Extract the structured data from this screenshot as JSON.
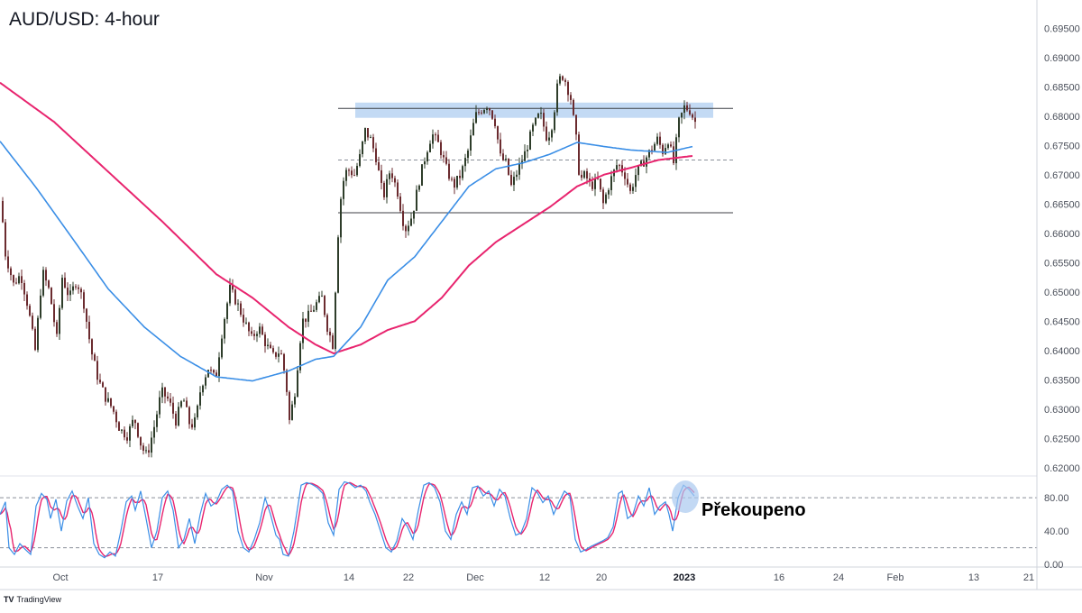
{
  "title": "AUD/USD: 4-hour",
  "callout": "Překoupeno",
  "watermark": "TradingView",
  "colors": {
    "up_candle": "#2e3d2a",
    "down_candle": "#6b2b2f",
    "ma_fast": "#3a8ee6",
    "ma_slow": "#e8246e",
    "stoch_k": "#3a8ee6",
    "stoch_d": "#e8246e",
    "zone_fill": "#b9d3f2",
    "axis_text": "#4a4f5a"
  },
  "chart_data": {
    "type": "candlestick",
    "price_axis": {
      "ylim": [
        0.6175,
        0.6975
      ],
      "ticks": [
        "0.62000",
        "0.62500",
        "0.63000",
        "0.63500",
        "0.64000",
        "0.64500",
        "0.65000",
        "0.65500",
        "0.66000",
        "0.66500",
        "0.67000",
        "0.67500",
        "0.68000",
        "0.68500",
        "0.69000",
        "0.69500"
      ]
    },
    "x_axis": {
      "ticks": [
        "Oct",
        "17",
        "Nov",
        "14",
        "22",
        "Dec",
        "12",
        "20",
        "2023",
        "16",
        "24",
        "Feb",
        "13",
        "21"
      ],
      "bold_ticks": [
        "2023"
      ]
    },
    "levels": [
      {
        "name": "resistance",
        "value": 0.6813,
        "style": "solid"
      },
      {
        "name": "mid",
        "value": 0.6725,
        "style": "dashed"
      },
      {
        "name": "support",
        "value": 0.6635,
        "style": "solid"
      }
    ],
    "resistance_zone": [
      0.6797,
      0.6823
    ],
    "price_anchors": [
      [
        0,
        0.6655
      ],
      [
        5,
        0.6565
      ],
      [
        14,
        0.6513
      ],
      [
        22,
        0.653
      ],
      [
        30,
        0.6475
      ],
      [
        38,
        0.64
      ],
      [
        46,
        0.6535
      ],
      [
        54,
        0.65
      ],
      [
        62,
        0.642
      ],
      [
        68,
        0.6525
      ],
      [
        76,
        0.649
      ],
      [
        84,
        0.652
      ],
      [
        92,
        0.648
      ],
      [
        100,
        0.64
      ],
      [
        108,
        0.635
      ],
      [
        116,
        0.632
      ],
      [
        124,
        0.63
      ],
      [
        132,
        0.6265
      ],
      [
        140,
        0.6255
      ],
      [
        148,
        0.6285
      ],
      [
        156,
        0.6235
      ],
      [
        162,
        0.622
      ],
      [
        170,
        0.627
      ],
      [
        178,
        0.633
      ],
      [
        186,
        0.6315
      ],
      [
        194,
        0.628
      ],
      [
        202,
        0.632
      ],
      [
        210,
        0.627
      ],
      [
        216,
        0.628
      ],
      [
        222,
        0.634
      ],
      [
        230,
        0.637
      ],
      [
        238,
        0.635
      ],
      [
        246,
        0.644
      ],
      [
        254,
        0.6505
      ],
      [
        262,
        0.648
      ],
      [
        270,
        0.645
      ],
      [
        278,
        0.642
      ],
      [
        286,
        0.644
      ],
      [
        294,
        0.641
      ],
      [
        302,
        0.639
      ],
      [
        310,
        0.64
      ],
      [
        316,
        0.635
      ],
      [
        320,
        0.628
      ],
      [
        326,
        0.633
      ],
      [
        334,
        0.645
      ],
      [
        342,
        0.646
      ],
      [
        350,
        0.648
      ],
      [
        356,
        0.649
      ],
      [
        362,
        0.644
      ],
      [
        368,
        0.641
      ],
      [
        374,
        0.66
      ],
      [
        378,
        0.668
      ],
      [
        384,
        0.671
      ],
      [
        392,
        0.67
      ],
      [
        398,
        0.673
      ],
      [
        404,
        0.6775
      ],
      [
        410,
        0.676
      ],
      [
        416,
        0.673
      ],
      [
        424,
        0.666
      ],
      [
        432,
        0.671
      ],
      [
        440,
        0.667
      ],
      [
        448,
        0.6605
      ],
      [
        456,
        0.663
      ],
      [
        464,
        0.669
      ],
      [
        472,
        0.674
      ],
      [
        478,
        0.677
      ],
      [
        486,
        0.675
      ],
      [
        494,
        0.671
      ],
      [
        502,
        0.668
      ],
      [
        510,
        0.67
      ],
      [
        518,
        0.674
      ],
      [
        526,
        0.68
      ],
      [
        532,
        0.681
      ],
      [
        540,
        0.682
      ],
      [
        548,
        0.679
      ],
      [
        554,
        0.673
      ],
      [
        560,
        0.672
      ],
      [
        566,
        0.668
      ],
      [
        574,
        0.671
      ],
      [
        582,
        0.674
      ],
      [
        590,
        0.678
      ],
      [
        598,
        0.6805
      ],
      [
        606,
        0.676
      ],
      [
        612,
        0.679
      ],
      [
        618,
        0.686
      ],
      [
        624,
        0.687
      ],
      [
        632,
        0.683
      ],
      [
        638,
        0.676
      ],
      [
        642,
        0.669
      ],
      [
        648,
        0.67
      ],
      [
        654,
        0.668
      ],
      [
        662,
        0.669
      ],
      [
        668,
        0.665
      ],
      [
        676,
        0.669
      ],
      [
        684,
        0.672
      ],
      [
        692,
        0.67
      ],
      [
        698,
        0.667
      ],
      [
        704,
        0.67
      ],
      [
        712,
        0.672
      ],
      [
        720,
        0.674
      ],
      [
        728,
        0.676
      ],
      [
        734,
        0.674
      ],
      [
        740,
        0.676
      ],
      [
        746,
        0.672
      ],
      [
        752,
        0.679
      ],
      [
        758,
        0.6815
      ],
      [
        764,
        0.681
      ],
      [
        770,
        0.679
      ]
    ],
    "ma_fast_anchors": [
      [
        0,
        0.6757
      ],
      [
        40,
        0.6678
      ],
      [
        80,
        0.6592
      ],
      [
        120,
        0.6505
      ],
      [
        160,
        0.644
      ],
      [
        200,
        0.639
      ],
      [
        240,
        0.6355
      ],
      [
        280,
        0.6348
      ],
      [
        320,
        0.6365
      ],
      [
        350,
        0.6385
      ],
      [
        370,
        0.639
      ],
      [
        400,
        0.644
      ],
      [
        430,
        0.652
      ],
      [
        460,
        0.656
      ],
      [
        490,
        0.662
      ],
      [
        520,
        0.668
      ],
      [
        550,
        0.671
      ],
      [
        580,
        0.672
      ],
      [
        610,
        0.6735
      ],
      [
        640,
        0.6755
      ],
      [
        670,
        0.6748
      ],
      [
        700,
        0.6742
      ],
      [
        720,
        0.674
      ],
      [
        740,
        0.6738
      ],
      [
        768,
        0.6748
      ]
    ],
    "ma_slow_anchors": [
      [
        0,
        0.6857
      ],
      [
        60,
        0.679
      ],
      [
        120,
        0.6705
      ],
      [
        180,
        0.662
      ],
      [
        240,
        0.653
      ],
      [
        280,
        0.649
      ],
      [
        320,
        0.644
      ],
      [
        350,
        0.641
      ],
      [
        370,
        0.6395
      ],
      [
        400,
        0.641
      ],
      [
        430,
        0.6435
      ],
      [
        460,
        0.645
      ],
      [
        490,
        0.649
      ],
      [
        520,
        0.6545
      ],
      [
        550,
        0.6585
      ],
      [
        580,
        0.6615
      ],
      [
        610,
        0.6645
      ],
      [
        640,
        0.668
      ],
      [
        670,
        0.67
      ],
      [
        700,
        0.6712
      ],
      [
        730,
        0.6725
      ],
      [
        768,
        0.6732
      ]
    ],
    "oscillator": {
      "type": "stochastic",
      "ylim": [
        -2,
        106
      ],
      "ticks": [
        "0.00",
        "40.00",
        "80.00"
      ],
      "overbought": 80,
      "oversold": 20,
      "k_anchors": [
        [
          0,
          60
        ],
        [
          6,
          75
        ],
        [
          10,
          20
        ],
        [
          16,
          12
        ],
        [
          22,
          25
        ],
        [
          28,
          18
        ],
        [
          34,
          12
        ],
        [
          40,
          70
        ],
        [
          46,
          85
        ],
        [
          52,
          78
        ],
        [
          56,
          55
        ],
        [
          62,
          78
        ],
        [
          68,
          40
        ],
        [
          74,
          76
        ],
        [
          80,
          88
        ],
        [
          86,
          70
        ],
        [
          92,
          55
        ],
        [
          98,
          80
        ],
        [
          104,
          25
        ],
        [
          110,
          12
        ],
        [
          116,
          8
        ],
        [
          122,
          15
        ],
        [
          128,
          10
        ],
        [
          134,
          40
        ],
        [
          140,
          75
        ],
        [
          146,
          82
        ],
        [
          150,
          65
        ],
        [
          156,
          88
        ],
        [
          162,
          55
        ],
        [
          168,
          20
        ],
        [
          174,
          40
        ],
        [
          180,
          80
        ],
        [
          186,
          88
        ],
        [
          192,
          65
        ],
        [
          198,
          20
        ],
        [
          204,
          30
        ],
        [
          210,
          55
        ],
        [
          216,
          25
        ],
        [
          222,
          60
        ],
        [
          228,
          85
        ],
        [
          234,
          70
        ],
        [
          240,
          75
        ],
        [
          246,
          90
        ],
        [
          252,
          95
        ],
        [
          258,
          88
        ],
        [
          264,
          40
        ],
        [
          270,
          20
        ],
        [
          276,
          15
        ],
        [
          282,
          30
        ],
        [
          288,
          50
        ],
        [
          294,
          80
        ],
        [
          300,
          60
        ],
        [
          306,
          35
        ],
        [
          310,
          30
        ],
        [
          314,
          12
        ],
        [
          320,
          10
        ],
        [
          326,
          40
        ],
        [
          334,
          95
        ],
        [
          340,
          98
        ],
        [
          346,
          96
        ],
        [
          352,
          92
        ],
        [
          358,
          85
        ],
        [
          364,
          50
        ],
        [
          370,
          35
        ],
        [
          376,
          90
        ],
        [
          382,
          99
        ],
        [
          388,
          97
        ],
        [
          394,
          92
        ],
        [
          400,
          95
        ],
        [
          406,
          88
        ],
        [
          410,
          75
        ],
        [
          416,
          60
        ],
        [
          422,
          40
        ],
        [
          428,
          20
        ],
        [
          434,
          15
        ],
        [
          440,
          28
        ],
        [
          446,
          55
        ],
        [
          452,
          45
        ],
        [
          458,
          30
        ],
        [
          464,
          65
        ],
        [
          470,
          95
        ],
        [
          476,
          98
        ],
        [
          482,
          92
        ],
        [
          488,
          75
        ],
        [
          494,
          40
        ],
        [
          500,
          30
        ],
        [
          506,
          60
        ],
        [
          512,
          75
        ],
        [
          518,
          60
        ],
        [
          524,
          92
        ],
        [
          530,
          94
        ],
        [
          536,
          82
        ],
        [
          542,
          88
        ],
        [
          548,
          70
        ],
        [
          554,
          90
        ],
        [
          560,
          82
        ],
        [
          566,
          55
        ],
        [
          572,
          35
        ],
        [
          578,
          38
        ],
        [
          584,
          55
        ],
        [
          590,
          92
        ],
        [
          596,
          86
        ],
        [
          602,
          74
        ],
        [
          608,
          82
        ],
        [
          614,
          60
        ],
        [
          620,
          75
        ],
        [
          626,
          88
        ],
        [
          632,
          82
        ],
        [
          638,
          30
        ],
        [
          644,
          15
        ],
        [
          650,
          18
        ],
        [
          656,
          22
        ],
        [
          662,
          25
        ],
        [
          668,
          28
        ],
        [
          674,
          32
        ],
        [
          680,
          45
        ],
        [
          686,
          85
        ],
        [
          690,
          88
        ],
        [
          696,
          55
        ],
        [
          702,
          60
        ],
        [
          708,
          82
        ],
        [
          714,
          70
        ],
        [
          720,
          92
        ],
        [
          726,
          60
        ],
        [
          732,
          70
        ],
        [
          738,
          75
        ],
        [
          742,
          60
        ],
        [
          746,
          40
        ],
        [
          752,
          80
        ],
        [
          758,
          95
        ],
        [
          764,
          90
        ],
        [
          770,
          82
        ]
      ]
    }
  }
}
